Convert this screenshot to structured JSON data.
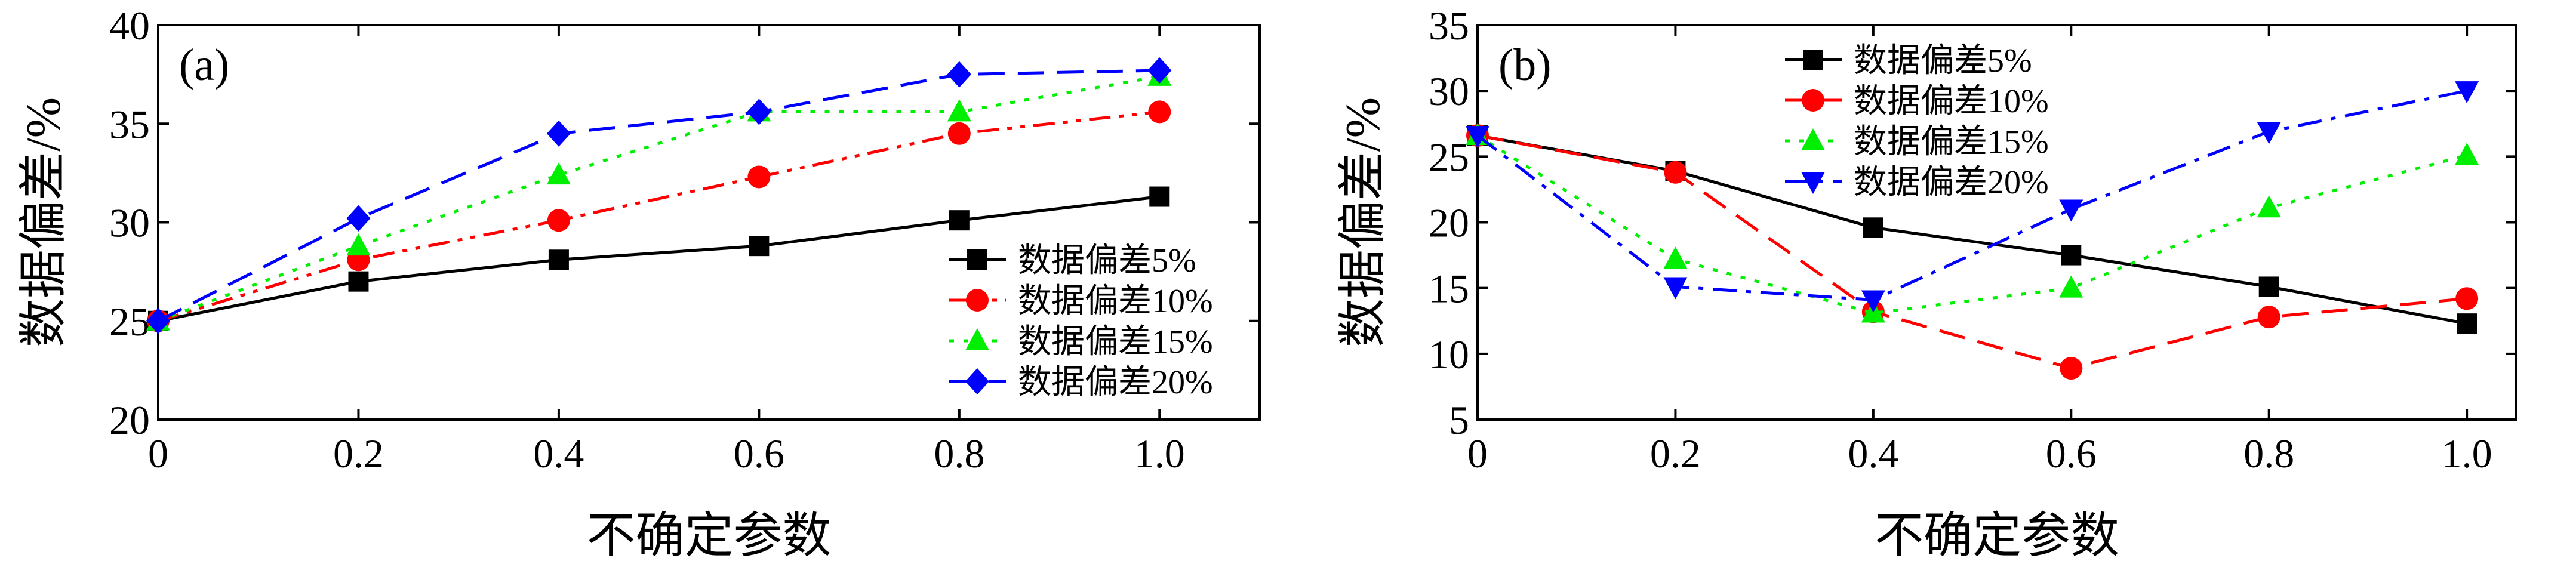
{
  "chart_data": [
    {
      "type": "line",
      "panel_label": "(a)",
      "title": "",
      "xlabel": "不确定参数",
      "ylabel": "数据偏差/%",
      "xlim": [
        0,
        1.1
      ],
      "ylim": [
        20,
        40
      ],
      "x_ticks": [
        0,
        0.2,
        0.4,
        0.6,
        0.8,
        1.0
      ],
      "x_tick_labels": [
        "0",
        "0.2",
        "0.4",
        "0.6",
        "0.8",
        "1.0"
      ],
      "y_ticks": [
        20,
        25,
        30,
        35,
        40
      ],
      "y_tick_labels": [
        "20",
        "25",
        "30",
        "35",
        "40"
      ],
      "legend_position": "lower-right",
      "x": [
        0,
        0.2,
        0.4,
        0.6,
        0.8,
        1.0
      ],
      "series": [
        {
          "name": "数据偏差5%",
          "color": "#000000",
          "marker": "square",
          "dash": "solid",
          "values": [
            25.0,
            27.0,
            28.1,
            28.8,
            30.1,
            31.3
          ]
        },
        {
          "name": "数据偏差10%",
          "color": "#ff0000",
          "marker": "circle",
          "dash": "dashdotdot",
          "values": [
            25.0,
            28.1,
            30.1,
            32.3,
            34.5,
            35.6
          ]
        },
        {
          "name": "数据偏差15%",
          "color": "#00ee00",
          "marker": "triangle-up",
          "dash": "dotted",
          "values": [
            25.0,
            28.8,
            32.4,
            35.6,
            35.6,
            37.4
          ]
        },
        {
          "name": "数据偏差20%",
          "color": "#0000ff",
          "marker": "diamond",
          "dash": "dashed",
          "values": [
            25.0,
            30.2,
            34.5,
            35.6,
            37.5,
            37.7
          ]
        }
      ]
    },
    {
      "type": "line",
      "panel_label": "(b)",
      "title": "",
      "xlabel": "不确定参数",
      "ylabel": "数据偏差/%",
      "xlim": [
        0,
        1.05
      ],
      "ylim": [
        5,
        35
      ],
      "x_ticks": [
        0,
        0.2,
        0.4,
        0.6,
        0.8,
        1.0
      ],
      "x_tick_labels": [
        "0",
        "0.2",
        "0.4",
        "0.6",
        "0.8",
        "1.0"
      ],
      "y_ticks": [
        5,
        10,
        15,
        20,
        25,
        30,
        35
      ],
      "y_tick_labels": [
        "5",
        "10",
        "15",
        "20",
        "25",
        "30",
        "35"
      ],
      "legend_position": "upper-left",
      "x": [
        0,
        0.2,
        0.4,
        0.6,
        0.8,
        1.0
      ],
      "series": [
        {
          "name": "数据偏差5%",
          "color": "#000000",
          "marker": "square",
          "dash": "solid",
          "values": [
            26.6,
            23.9,
            19.6,
            17.5,
            15.1,
            12.3
          ]
        },
        {
          "name": "数据偏差10%",
          "color": "#ff0000",
          "marker": "circle",
          "dash": "dashed",
          "values": [
            26.6,
            23.8,
            13.2,
            8.9,
            12.8,
            14.2
          ]
        },
        {
          "name": "数据偏差15%",
          "color": "#00ee00",
          "marker": "triangle-up",
          "dash": "dotted",
          "values": [
            26.6,
            17.2,
            13.1,
            15.0,
            21.1,
            25.1
          ]
        },
        {
          "name": "数据偏差20%",
          "color": "#0000ff",
          "marker": "triangle-down",
          "dash": "dashdot",
          "values": [
            26.6,
            15.1,
            14.1,
            21.0,
            26.9,
            30.0
          ]
        }
      ]
    }
  ]
}
